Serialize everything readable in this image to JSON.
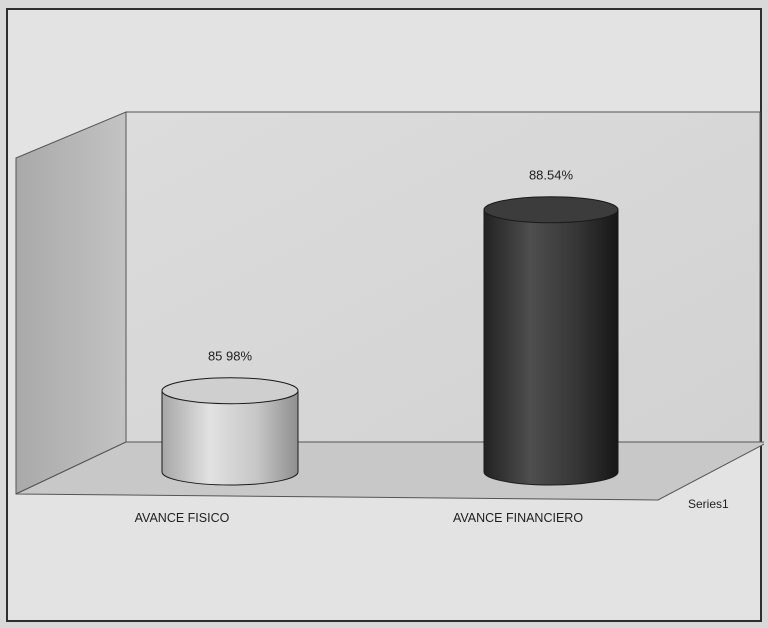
{
  "chart_data": {
    "type": "bar",
    "bar_shape": "cylinder-3d",
    "categories": [
      "AVANCE FISICO",
      "AVANCE FINANCIERO"
    ],
    "series": [
      {
        "name": "Series1",
        "values": [
          85.98,
          88.54
        ],
        "data_labels": [
          "85 98%",
          "88.54%"
        ],
        "colors": [
          "#c2c2c2",
          "#333333"
        ]
      }
    ],
    "value_axis": {
      "range": [
        85,
        89
      ],
      "visible": false
    },
    "series_axis_labels": [
      "Series1"
    ],
    "grid": false,
    "legend": "none"
  }
}
